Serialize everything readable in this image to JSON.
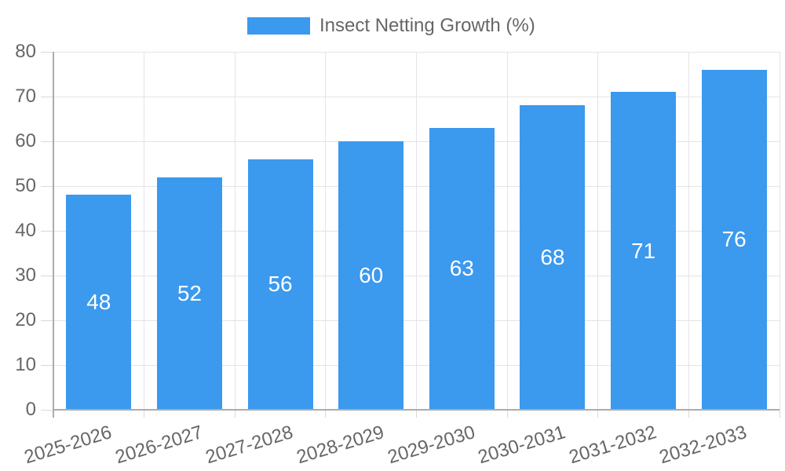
{
  "legend": {
    "label": "Insect Netting Growth (%)"
  },
  "colors": {
    "bar": "#3B99EE",
    "grid": "#E4E4E4",
    "tick": "#D9D9D9",
    "axis": "#ACACAC",
    "tick_text": "#666666",
    "legend_text": "#666666",
    "value_text": "#FFFFFF",
    "background": "#FFFFFF"
  },
  "chart_data": {
    "type": "bar",
    "title": "Insect Netting Growth (%)",
    "series_name": "Insect Netting Growth (%)",
    "categories": [
      "2025-2026",
      "2026-2027",
      "2027-2028",
      "2028-2029",
      "2029-2030",
      "2030-2031",
      "2031-2032",
      "2032-2033"
    ],
    "values": [
      48,
      52,
      56,
      60,
      63,
      68,
      71,
      76
    ],
    "value_labels": [
      "48",
      "52",
      "56",
      "60",
      "63",
      "68",
      "71",
      "76"
    ],
    "xlabel": "",
    "ylabel": "",
    "ylim": [
      0,
      80
    ],
    "yticks": [
      0,
      10,
      20,
      30,
      40,
      50,
      60,
      70,
      80
    ],
    "grid": true,
    "legend_position": "top",
    "value_labels_inside_bars": true,
    "x_label_rotation_deg": -17
  }
}
